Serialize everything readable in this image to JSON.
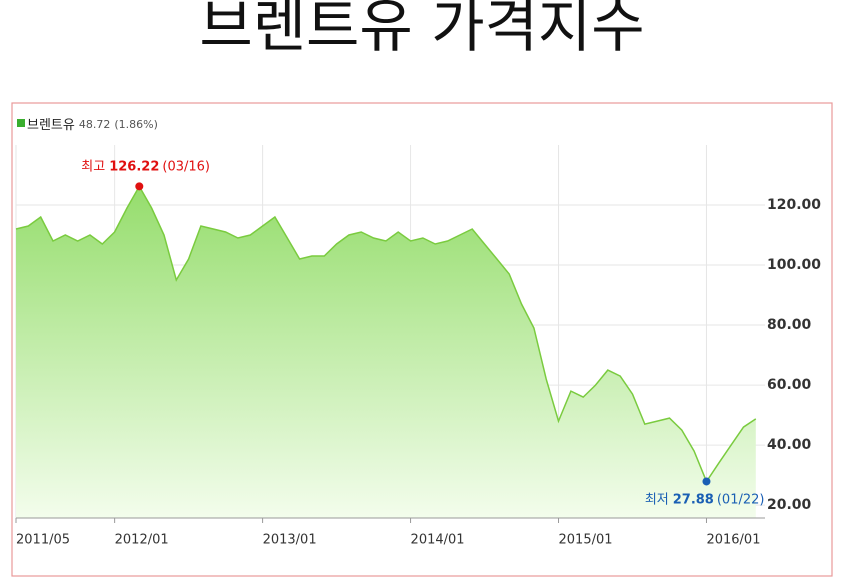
{
  "chart_data": {
    "type": "line",
    "title": "브렌트유 가격지수",
    "legend": {
      "name": "브렌트유",
      "latest": 48.72,
      "change": {
        "value": 1.86,
        "label": "(1.86%)"
      }
    },
    "x": [
      "2011/05",
      "2011/06",
      "2011/07",
      "2011/08",
      "2011/09",
      "2011/10",
      "2011/11",
      "2011/12",
      "2012/01",
      "2012/02",
      "2012/03",
      "2012/04",
      "2012/05",
      "2012/06",
      "2012/07",
      "2012/08",
      "2012/09",
      "2012/10",
      "2012/11",
      "2012/12",
      "2013/01",
      "2013/02",
      "2013/03",
      "2013/04",
      "2013/05",
      "2013/06",
      "2013/07",
      "2013/08",
      "2013/09",
      "2013/10",
      "2013/11",
      "2013/12",
      "2014/01",
      "2014/02",
      "2014/03",
      "2014/04",
      "2014/05",
      "2014/06",
      "2014/07",
      "2014/08",
      "2014/09",
      "2014/10",
      "2014/11",
      "2014/12",
      "2015/01",
      "2015/02",
      "2015/03",
      "2015/04",
      "2015/05",
      "2015/06",
      "2015/07",
      "2015/08",
      "2015/09",
      "2015/10",
      "2015/11",
      "2015/12",
      "2016/01",
      "2016/02",
      "2016/03",
      "2016/04",
      "2016/05"
    ],
    "series": [
      {
        "name": "브렌트유",
        "color": "#7acb3f",
        "values": [
          112,
          113,
          116,
          108,
          110,
          108,
          110,
          107,
          111,
          119,
          126.22,
          119,
          110,
          95,
          102,
          113,
          112,
          111,
          109,
          110,
          113,
          116,
          109,
          102,
          103,
          103,
          107,
          110,
          111,
          109,
          108,
          111,
          108,
          109,
          107,
          108,
          110,
          112,
          107,
          102,
          97,
          87,
          79,
          62,
          48,
          58,
          56,
          60,
          65,
          63,
          57,
          47,
          48,
          49,
          45,
          38,
          27.88,
          34,
          40,
          46,
          48.72
        ]
      }
    ],
    "ylim": [
      15.7,
      140
    ],
    "yticks": [
      {
        "value": 20,
        "label": "20.00"
      },
      {
        "value": 40,
        "label": "40.00"
      },
      {
        "value": 60,
        "label": "60.00"
      },
      {
        "value": 80,
        "label": "80.00"
      },
      {
        "value": 100,
        "label": "100.00"
      },
      {
        "value": 120,
        "label": "120.00"
      }
    ],
    "xticks": [
      "2011/05",
      "2012/01",
      "2013/01",
      "2014/01",
      "2015/01",
      "2016/01"
    ],
    "annotations": [
      {
        "label": "최고",
        "value": 126.22,
        "date": "(03/16)",
        "color": "#e01010"
      },
      {
        "label": "최저",
        "value": 27.88,
        "date": "(01/22)",
        "color": "#1a5fb4"
      }
    ],
    "grid": true
  }
}
